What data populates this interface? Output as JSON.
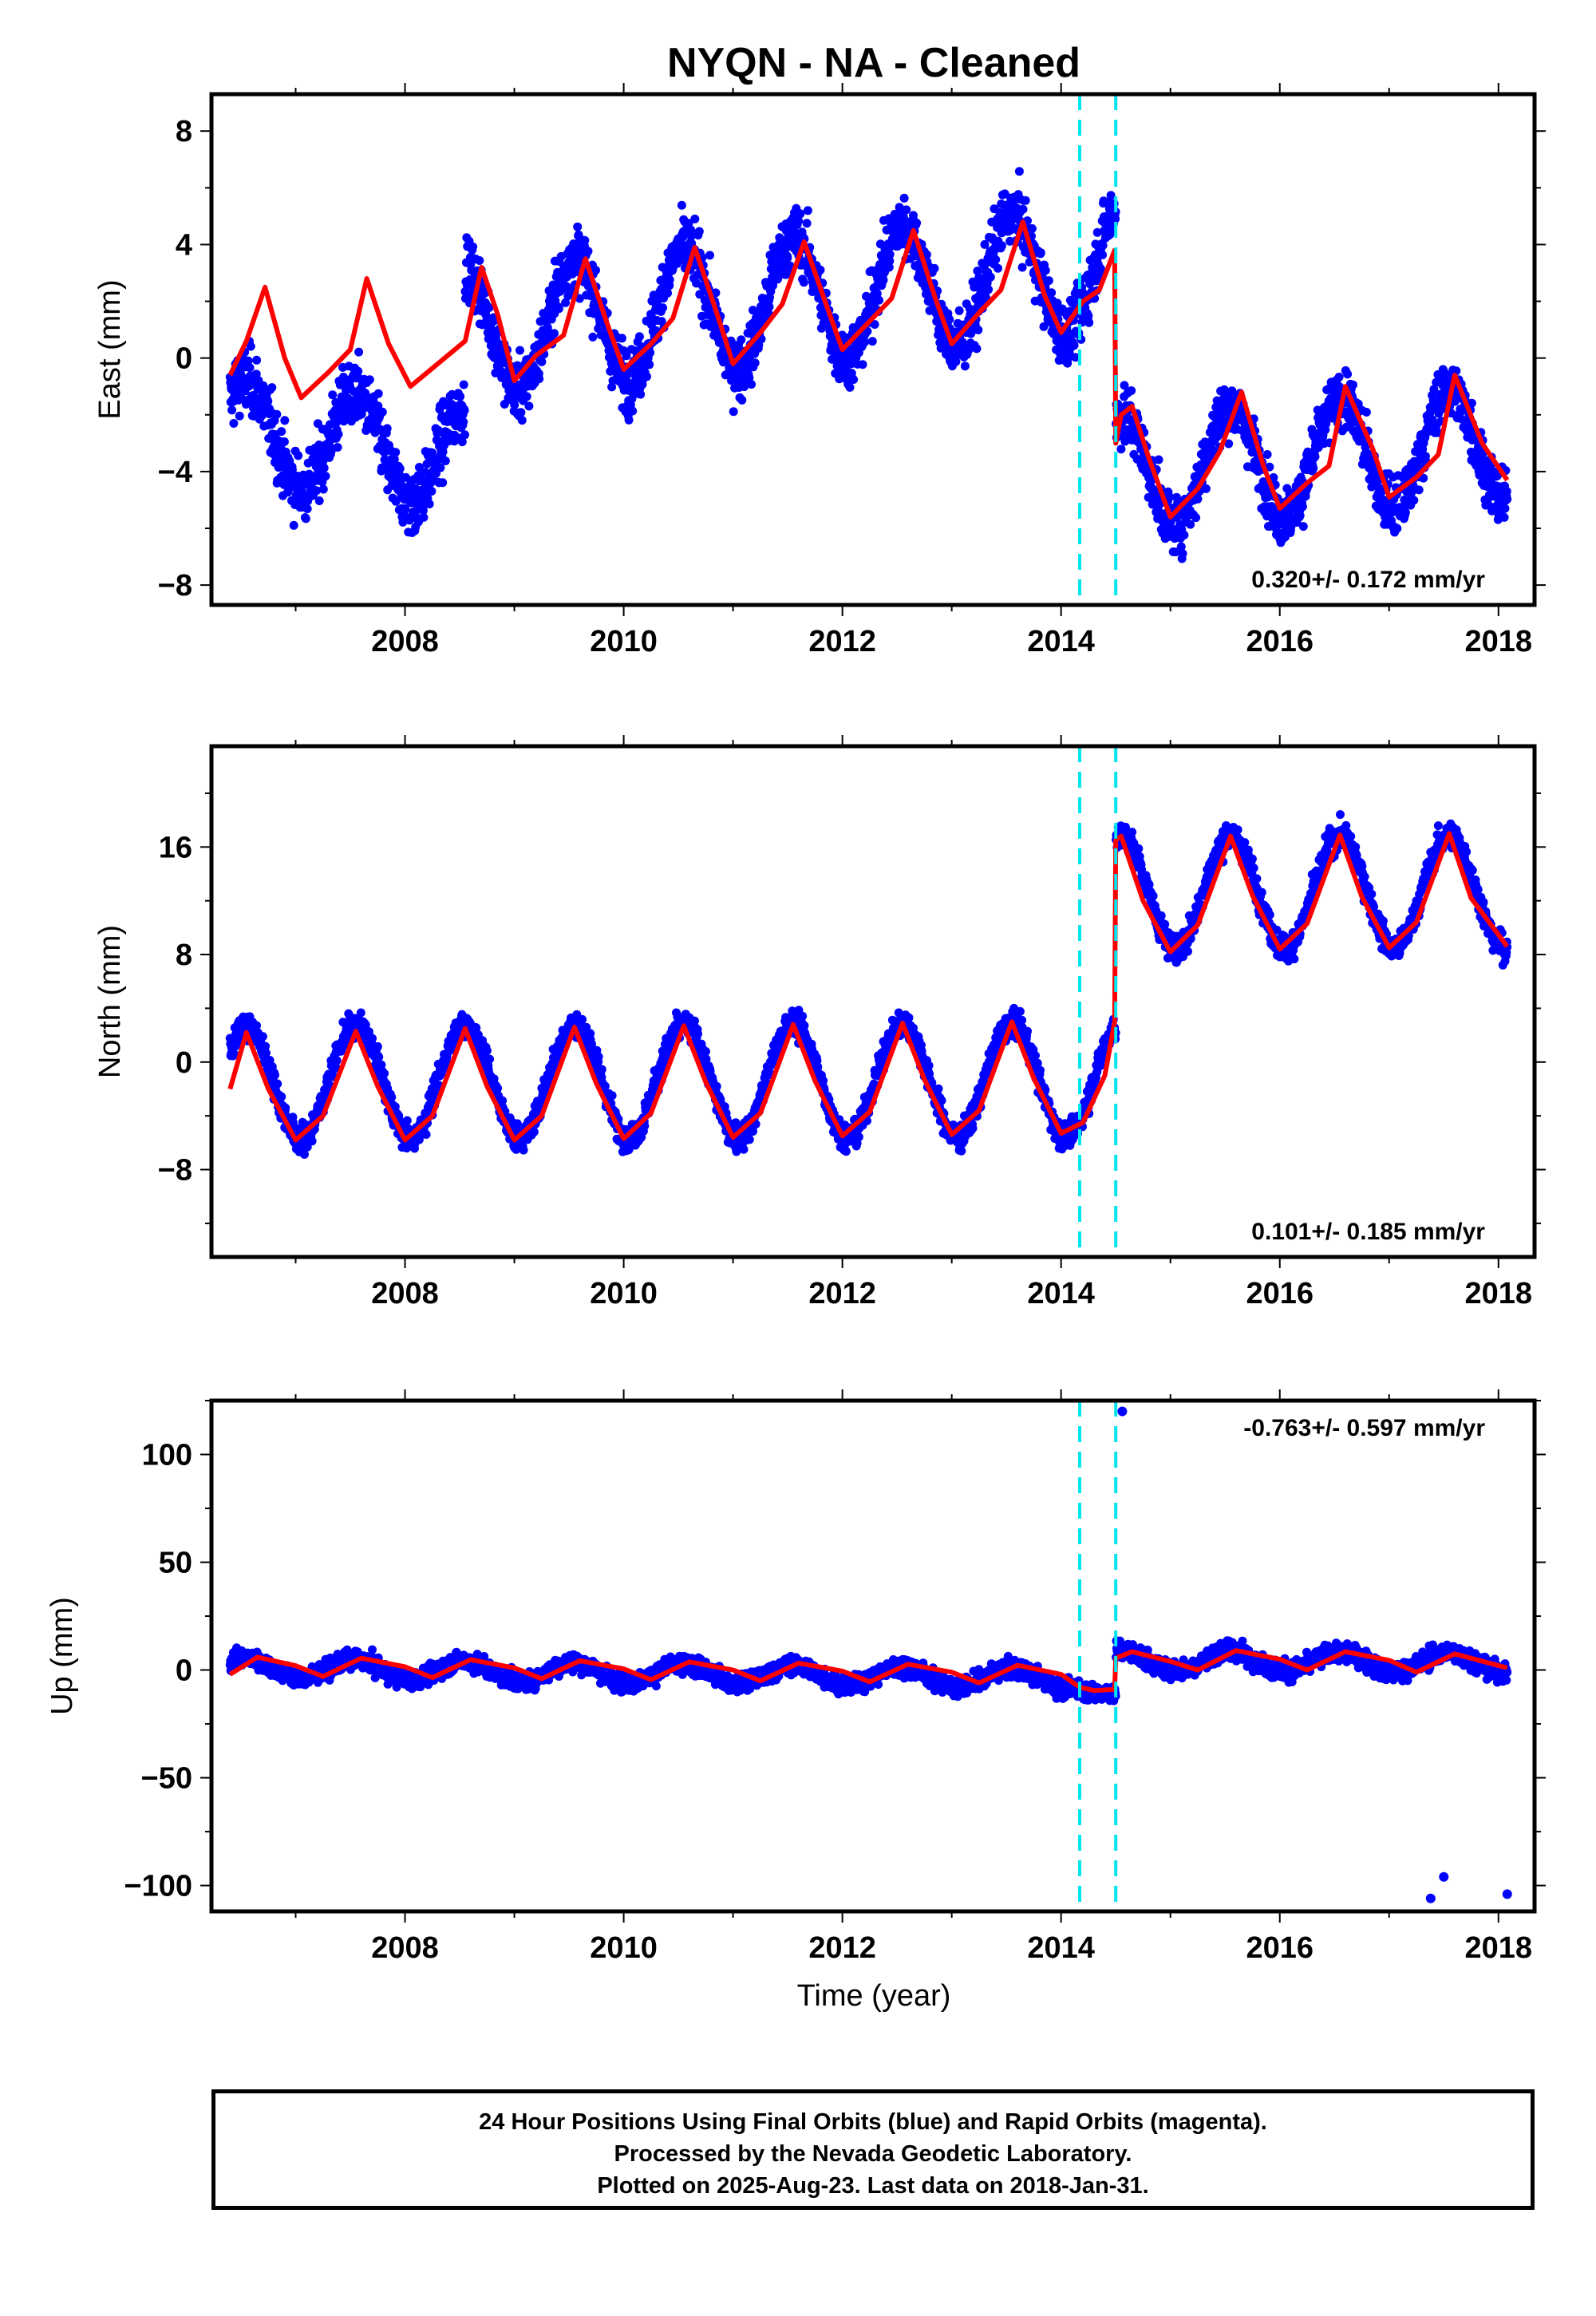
{
  "title": "NYQN  - NA - Cleaned",
  "xlabel": "Time (year)",
  "caption": {
    "line1": "24 Hour Positions Using Final Orbits (blue) and Rapid Orbits (magenta).",
    "line2": "Processed by the Nevada Geodetic Laboratory.",
    "line3": "Plotted on 2025-Aug-23. Last data on 2018-Jan-31."
  },
  "colors": {
    "points": "#0000ff",
    "model": "#ff0000",
    "offset_lines": "#00e5ee"
  },
  "chart_data": [
    {
      "type": "scatter",
      "panel": "east",
      "ylabel": "East (mm)",
      "xlim": [
        2006.23,
        2018.33
      ],
      "ylim": [
        -8.7,
        9.3
      ],
      "x_ticks": [
        2008,
        2010,
        2012,
        2014,
        2016,
        2018
      ],
      "y_ticks": [
        -8,
        -4,
        0,
        4,
        8
      ],
      "y_tick_labels": [
        "−8",
        "−4",
        "0",
        "4",
        "8"
      ],
      "rate_label": "0.320+/- 0.172 mm/yr",
      "rate_label_position": "bottom-right",
      "offsets": [
        2014.17,
        2014.5
      ],
      "series": [
        {
          "style": "points",
          "x_range": [
            2006.4,
            2018.08
          ],
          "points_per_year": 300,
          "segments": [
            {
              "until": 2008.55,
              "base_start": -2.5,
              "base_end": -3.5,
              "amplitude": 1.8,
              "noise": 1.4
            },
            {
              "until": 2014.5,
              "base_start": 0.9,
              "base_end": 3.2,
              "amplitude": 2.2,
              "noise": 1.3
            },
            {
              "until": 2018.08,
              "base_start": -4.0,
              "base_end": -3.0,
              "amplitude": 2.0,
              "noise": 1.2
            }
          ]
        },
        {
          "style": "line",
          "name": "model",
          "x": [
            2006.4,
            2006.55,
            2006.72,
            2006.9,
            2007.05,
            2007.3,
            2007.5,
            2007.65,
            2007.85,
            2008.05,
            2008.3,
            2008.55,
            2008.7,
            2008.85,
            2009.0,
            2009.2,
            2009.45,
            2009.65,
            2009.85,
            2010.0,
            2010.25,
            2010.45,
            2010.65,
            2010.85,
            2011.0,
            2011.25,
            2011.45,
            2011.65,
            2011.85,
            2012.0,
            2012.25,
            2012.45,
            2012.65,
            2012.85,
            2013.0,
            2013.25,
            2013.45,
            2013.65,
            2013.85,
            2014.0,
            2014.2,
            2014.35,
            2014.49,
            2014.5,
            2014.55,
            2014.65,
            2014.8,
            2015.0,
            2015.25,
            2015.45,
            2015.65,
            2015.85,
            2016.0,
            2016.25,
            2016.45,
            2016.6,
            2016.85,
            2017.0,
            2017.25,
            2017.45,
            2017.6,
            2017.85,
            2018.08
          ],
          "y": [
            -0.6,
            0.6,
            2.5,
            0.0,
            -1.4,
            -0.5,
            0.3,
            2.8,
            0.5,
            -1.0,
            -0.2,
            0.6,
            3.2,
            1.5,
            -0.8,
            0.1,
            0.8,
            3.5,
            1.2,
            -0.4,
            0.5,
            1.4,
            3.9,
            1.6,
            -0.2,
            0.9,
            1.9,
            4.1,
            1.9,
            0.3,
            1.3,
            2.1,
            4.5,
            2.1,
            0.5,
            1.6,
            2.4,
            4.8,
            2.2,
            0.9,
            2.0,
            2.4,
            3.8,
            -3.0,
            -2.0,
            -1.7,
            -3.5,
            -5.6,
            -4.6,
            -3.3,
            -1.2,
            -3.8,
            -5.3,
            -4.4,
            -3.8,
            -1.0,
            -3.2,
            -4.9,
            -4.2,
            -3.4,
            -0.6,
            -3.0,
            -4.3
          ]
        }
      ]
    },
    {
      "type": "scatter",
      "panel": "north",
      "ylabel": "North (mm)",
      "xlim": [
        2006.23,
        2018.33
      ],
      "ylim": [
        -14.5,
        23.5
      ],
      "x_ticks": [
        2008,
        2010,
        2012,
        2014,
        2016,
        2018
      ],
      "y_ticks": [
        -8,
        0,
        8,
        16
      ],
      "y_tick_labels": [
        "−8",
        "0",
        "8",
        "16"
      ],
      "rate_label": "0.101+/- 0.185 mm/yr",
      "rate_label_position": "bottom-right",
      "offsets": [
        2014.17,
        2014.5
      ],
      "series": [
        {
          "style": "points",
          "x_range": [
            2006.4,
            2018.08
          ],
          "points_per_year": 300,
          "segments": [
            {
              "until": 2014.5,
              "base_start": -1.5,
              "base_end": -1.3,
              "amplitude": 4.2,
              "noise": 1.2
            },
            {
              "until": 2018.08,
              "base_start": 12.6,
              "base_end": 12.7,
              "amplitude": 4.2,
              "noise": 1.2
            }
          ]
        },
        {
          "style": "line",
          "name": "model",
          "x": [
            2006.4,
            2006.55,
            2006.75,
            2007.0,
            2007.25,
            2007.55,
            2007.75,
            2008.0,
            2008.25,
            2008.55,
            2008.75,
            2009.0,
            2009.25,
            2009.55,
            2009.75,
            2010.0,
            2010.25,
            2010.55,
            2010.75,
            2011.0,
            2011.25,
            2011.55,
            2011.75,
            2012.0,
            2012.25,
            2012.55,
            2012.75,
            2013.0,
            2013.25,
            2013.55,
            2013.75,
            2014.0,
            2014.2,
            2014.4,
            2014.49,
            2014.5,
            2014.55,
            2014.75,
            2015.0,
            2015.25,
            2015.55,
            2015.75,
            2016.0,
            2016.25,
            2016.55,
            2016.75,
            2017.0,
            2017.25,
            2017.55,
            2017.75,
            2018.08
          ],
          "y": [
            -2.0,
            2.2,
            -2.0,
            -5.8,
            -4.0,
            2.3,
            -1.8,
            -5.8,
            -4.0,
            2.5,
            -1.8,
            -5.8,
            -4.0,
            2.6,
            -1.6,
            -5.7,
            -3.8,
            2.7,
            -1.5,
            -5.6,
            -3.8,
            2.8,
            -1.4,
            -5.5,
            -3.7,
            2.9,
            -1.3,
            -5.4,
            -3.6,
            3.0,
            -1.2,
            -5.3,
            -4.5,
            -1.0,
            3.0,
            16.5,
            16.8,
            12.0,
            8.2,
            10.2,
            16.8,
            12.4,
            8.4,
            10.3,
            16.9,
            12.3,
            8.5,
            10.4,
            17.0,
            12.2,
            8.6
          ]
        }
      ]
    },
    {
      "type": "scatter",
      "panel": "up",
      "ylabel": "Up (mm)",
      "xlim": [
        2006.23,
        2018.33
      ],
      "ylim": [
        -112,
        125
      ],
      "x_ticks": [
        2008,
        2010,
        2012,
        2014,
        2016,
        2018
      ],
      "x_tick_labels": [
        "2008",
        "2010",
        "2012",
        "2014",
        "2016",
        "2018"
      ],
      "y_ticks": [
        -100,
        -50,
        0,
        50,
        100
      ],
      "y_tick_labels": [
        "−100",
        "−50",
        "0",
        "50",
        "100"
      ],
      "rate_label": "-0.763+/- 0.597 mm/yr",
      "rate_label_position": "top-right",
      "offsets": [
        2014.17,
        2014.5
      ],
      "outliers": {
        "x": [
          2014.56,
          2017.38,
          2017.5,
          2018.08
        ],
        "y": [
          120,
          -106,
          -96,
          -104
        ]
      },
      "series": [
        {
          "style": "points",
          "x_range": [
            2006.4,
            2018.08
          ],
          "points_per_year": 300,
          "segments": [
            {
              "until": 2014.17,
              "base_start": 1.0,
              "base_end": -4.0,
              "amplitude": 4.5,
              "noise": 5.0
            },
            {
              "until": 2014.5,
              "base_start": -9.0,
              "base_end": -12.0,
              "amplitude": 1.0,
              "noise": 5.0
            },
            {
              "until": 2018.08,
              "base_start": 4.5,
              "base_end": 3.5,
              "amplitude": 4.5,
              "noise": 5.5
            }
          ]
        },
        {
          "style": "line",
          "name": "model",
          "x": [
            2006.4,
            2006.65,
            2007.0,
            2007.25,
            2007.6,
            2008.0,
            2008.25,
            2008.6,
            2009.0,
            2009.25,
            2009.6,
            2010.0,
            2010.25,
            2010.6,
            2011.0,
            2011.25,
            2011.6,
            2012.0,
            2012.25,
            2012.6,
            2013.0,
            2013.25,
            2013.6,
            2014.0,
            2014.17,
            2014.3,
            2014.49,
            2014.5,
            2014.65,
            2015.0,
            2015.25,
            2015.6,
            2016.0,
            2016.25,
            2016.6,
            2017.0,
            2017.25,
            2017.6,
            2018.08
          ],
          "y": [
            -2.0,
            6.0,
            2.0,
            -3.0,
            5.5,
            1.5,
            -3.5,
            4.8,
            1.0,
            -4.0,
            4.3,
            0.5,
            -4.5,
            3.8,
            0.0,
            -5.0,
            3.2,
            -0.5,
            -5.5,
            2.7,
            -1.0,
            -6.0,
            2.2,
            -2.0,
            -8.0,
            -9.5,
            -9.0,
            5.5,
            8.5,
            4.0,
            0.0,
            9.0,
            5.0,
            0.0,
            8.5,
            4.5,
            -1.0,
            7.5,
            1.0
          ]
        }
      ]
    }
  ]
}
